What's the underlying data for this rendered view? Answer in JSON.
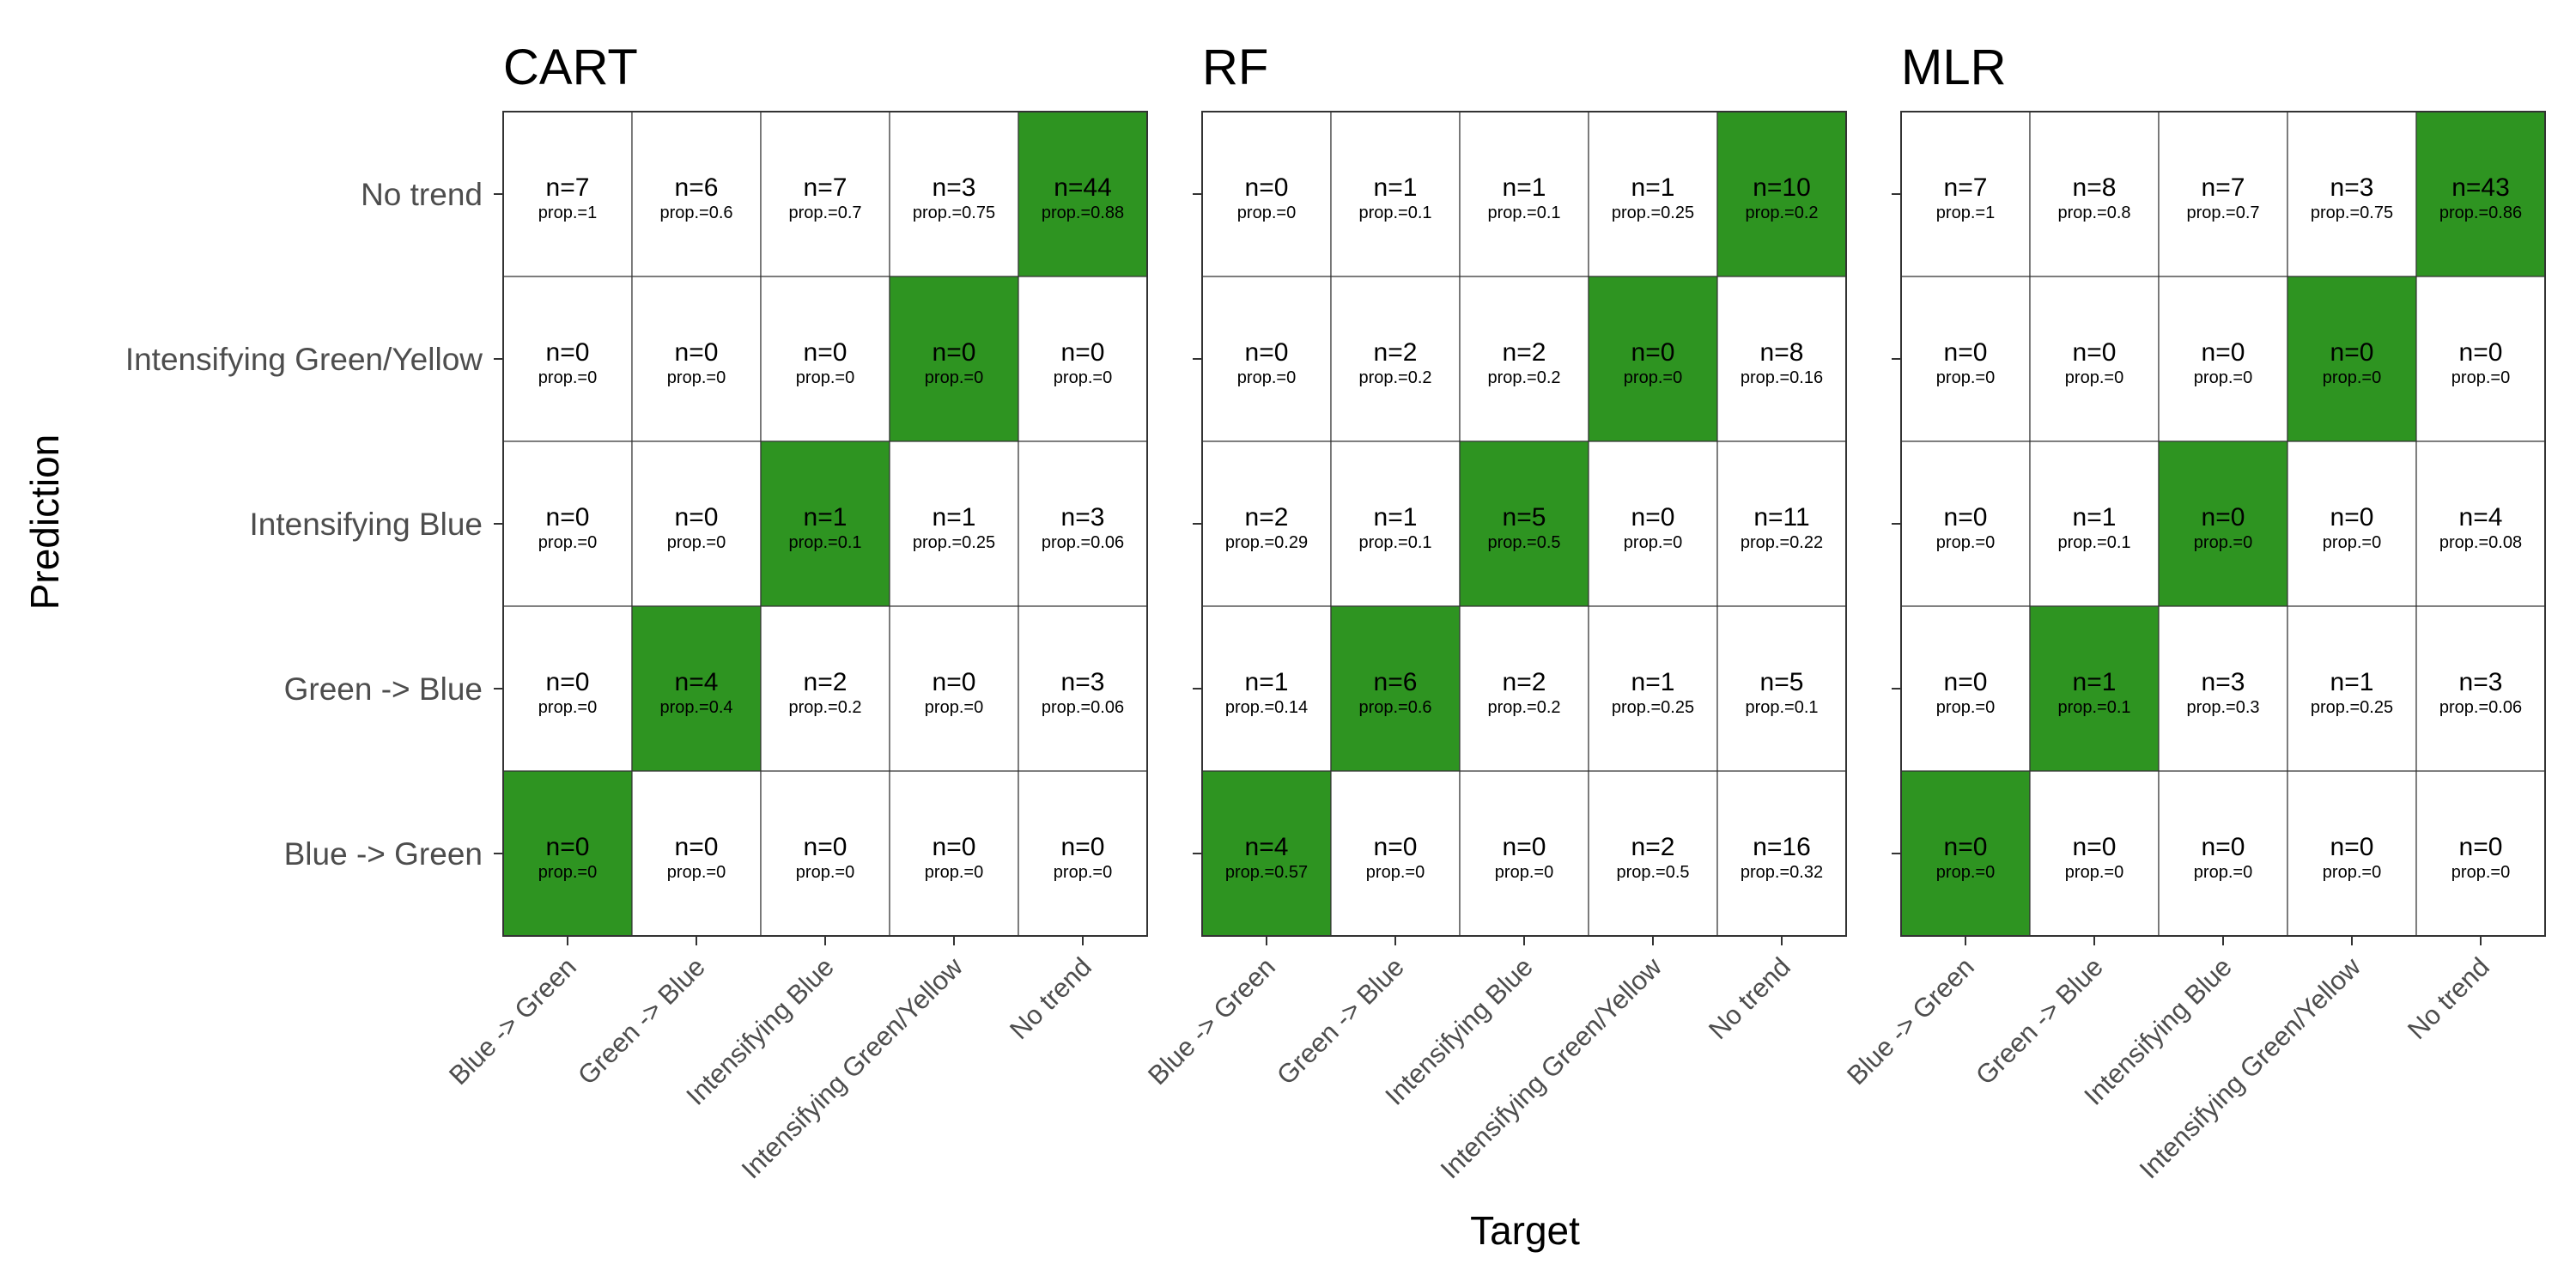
{
  "figure": {
    "xlabel": "Target",
    "ylabel": "Prediction"
  },
  "colors": {
    "diagonal_fill": "#2e9421",
    "cell_fill": "#ffffff",
    "grid_line": "#333333",
    "text": "#000000",
    "axis_text": "#4d4d4d"
  },
  "chart_data": [
    {
      "type": "heatmap",
      "title": "CART",
      "xlabel": "Target",
      "ylabel": "Prediction",
      "x_categories": [
        "Blue -> Green",
        "Green -> Blue",
        "Intensifying Blue",
        "Intensifying Green/Yellow",
        "No trend"
      ],
      "y_categories_top_to_bottom": [
        "No trend",
        "Intensifying Green/Yellow",
        "Intensifying Blue",
        "Green -> Blue",
        "Blue -> Green"
      ],
      "n": [
        [
          7,
          6,
          7,
          3,
          44
        ],
        [
          0,
          0,
          0,
          0,
          0
        ],
        [
          0,
          0,
          1,
          1,
          3
        ],
        [
          0,
          4,
          2,
          0,
          3
        ],
        [
          0,
          0,
          0,
          0,
          0
        ]
      ],
      "prop": [
        [
          "1",
          "0.6",
          "0.7",
          "0.75",
          "0.88"
        ],
        [
          "0",
          "0",
          "0",
          "0",
          "0"
        ],
        [
          "0",
          "0",
          "0.1",
          "0.25",
          "0.06"
        ],
        [
          "0",
          "0.4",
          "0.2",
          "0",
          "0.06"
        ],
        [
          "0",
          "0",
          "0",
          "0",
          "0"
        ]
      ]
    },
    {
      "type": "heatmap",
      "title": "RF",
      "xlabel": "Target",
      "ylabel": "Prediction",
      "x_categories": [
        "Blue -> Green",
        "Green -> Blue",
        "Intensifying Blue",
        "Intensifying Green/Yellow",
        "No trend"
      ],
      "y_categories_top_to_bottom": [
        "No trend",
        "Intensifying Green/Yellow",
        "Intensifying Blue",
        "Green -> Blue",
        "Blue -> Green"
      ],
      "n": [
        [
          0,
          1,
          1,
          1,
          10
        ],
        [
          0,
          2,
          2,
          0,
          8
        ],
        [
          2,
          1,
          5,
          0,
          11
        ],
        [
          1,
          6,
          2,
          1,
          5
        ],
        [
          4,
          0,
          0,
          2,
          16
        ]
      ],
      "prop": [
        [
          "0",
          "0.1",
          "0.1",
          "0.25",
          "0.2"
        ],
        [
          "0",
          "0.2",
          "0.2",
          "0",
          "0.16"
        ],
        [
          "0.29",
          "0.1",
          "0.5",
          "0",
          "0.22"
        ],
        [
          "0.14",
          "0.6",
          "0.2",
          "0.25",
          "0.1"
        ],
        [
          "0.57",
          "0",
          "0",
          "0.5",
          "0.32"
        ]
      ]
    },
    {
      "type": "heatmap",
      "title": "MLR",
      "xlabel": "Target",
      "ylabel": "Prediction",
      "x_categories": [
        "Blue -> Green",
        "Green -> Blue",
        "Intensifying Blue",
        "Intensifying Green/Yellow",
        "No trend"
      ],
      "y_categories_top_to_bottom": [
        "No trend",
        "Intensifying Green/Yellow",
        "Intensifying Blue",
        "Green -> Blue",
        "Blue -> Green"
      ],
      "n": [
        [
          7,
          8,
          7,
          3,
          43
        ],
        [
          0,
          0,
          0,
          0,
          0
        ],
        [
          0,
          1,
          0,
          0,
          4
        ],
        [
          0,
          1,
          3,
          1,
          3
        ],
        [
          0,
          0,
          0,
          0,
          0
        ]
      ],
      "prop": [
        [
          "1",
          "0.8",
          "0.7",
          "0.75",
          "0.86"
        ],
        [
          "0",
          "0",
          "0",
          "0",
          "0"
        ],
        [
          "0",
          "0.1",
          "0",
          "0",
          "0.08"
        ],
        [
          "0",
          "0.1",
          "0.3",
          "0.25",
          "0.06"
        ],
        [
          "0",
          "0",
          "0",
          "0",
          "0"
        ]
      ]
    }
  ]
}
